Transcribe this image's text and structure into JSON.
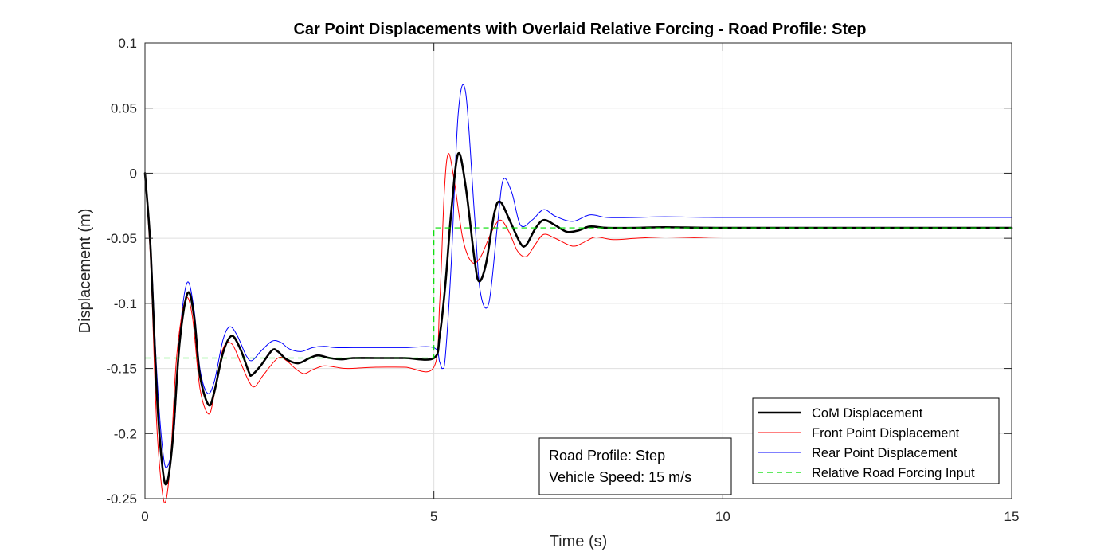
{
  "chart_data": {
    "type": "line",
    "title": "Car Point Displacements with Overlaid Relative Forcing - Road Profile: Step",
    "xlabel": "Time (s)",
    "ylabel": "Displacement (m)",
    "xlim": [
      0,
      15
    ],
    "ylim": [
      -0.25,
      0.1
    ],
    "xticks": [
      0,
      5,
      10,
      15
    ],
    "xtick_labels": [
      "0",
      "5",
      "10",
      "15"
    ],
    "yticks": [
      -0.25,
      -0.2,
      -0.15,
      -0.1,
      -0.05,
      0,
      0.05,
      0.1
    ],
    "ytick_labels": [
      "-0.25",
      "-0.2",
      "-0.15",
      "-0.1",
      "-0.05",
      "0",
      "0.05",
      "0.1"
    ],
    "grid": true,
    "legend_position": "bottom-right",
    "series": [
      {
        "name": "CoM Displacement",
        "color": "#000000",
        "style": "solid-thick",
        "x": [
          0,
          0.1,
          0.2,
          0.3,
          0.38,
          0.48,
          0.6,
          0.74,
          0.85,
          0.95,
          1.1,
          1.2,
          1.35,
          1.5,
          1.65,
          1.8,
          1.85,
          2.0,
          2.2,
          2.3,
          2.45,
          2.65,
          2.85,
          3.0,
          3.2,
          3.4,
          3.6,
          4.0,
          4.5,
          5.0,
          5.1,
          5.2,
          5.3,
          5.42,
          5.55,
          5.7,
          5.78,
          5.9,
          6.05,
          6.15,
          6.3,
          6.5,
          6.6,
          6.75,
          6.9,
          7.1,
          7.3,
          7.5,
          7.7,
          8.0,
          8.5,
          9.0,
          10.0,
          12.0,
          15.0
        ],
        "y": [
          0,
          -0.06,
          -0.165,
          -0.225,
          -0.238,
          -0.205,
          -0.13,
          -0.092,
          -0.11,
          -0.155,
          -0.178,
          -0.168,
          -0.138,
          -0.125,
          -0.135,
          -0.153,
          -0.155,
          -0.148,
          -0.136,
          -0.137,
          -0.143,
          -0.146,
          -0.142,
          -0.14,
          -0.142,
          -0.143,
          -0.142,
          -0.142,
          -0.142,
          -0.142,
          -0.125,
          -0.085,
          -0.03,
          0.015,
          -0.01,
          -0.065,
          -0.083,
          -0.07,
          -0.03,
          -0.022,
          -0.035,
          -0.054,
          -0.055,
          -0.043,
          -0.036,
          -0.04,
          -0.045,
          -0.044,
          -0.041,
          -0.042,
          -0.042,
          -0.0415,
          -0.042,
          -0.042,
          -0.042
        ]
      },
      {
        "name": "Front Point Displacement",
        "color": "#ff0000",
        "style": "solid-thin",
        "x": [
          0,
          0.1,
          0.2,
          0.3,
          0.37,
          0.45,
          0.55,
          0.7,
          0.82,
          0.95,
          1.1,
          1.2,
          1.35,
          1.5,
          1.65,
          1.8,
          1.9,
          2.05,
          2.3,
          2.45,
          2.6,
          2.75,
          2.9,
          3.1,
          3.3,
          3.5,
          4.0,
          4.5,
          5.0,
          5.1,
          5.18,
          5.25,
          5.35,
          5.5,
          5.65,
          5.8,
          6.0,
          6.15,
          6.3,
          6.45,
          6.6,
          6.75,
          6.9,
          7.1,
          7.4,
          7.6,
          7.8,
          8.1,
          8.5,
          9.0,
          9.5,
          10.0,
          12.0,
          15.0
        ],
        "y": [
          0,
          -0.07,
          -0.19,
          -0.245,
          -0.25,
          -0.215,
          -0.14,
          -0.097,
          -0.11,
          -0.165,
          -0.185,
          -0.17,
          -0.135,
          -0.131,
          -0.145,
          -0.16,
          -0.164,
          -0.155,
          -0.142,
          -0.144,
          -0.15,
          -0.154,
          -0.151,
          -0.148,
          -0.149,
          -0.15,
          -0.149,
          -0.149,
          -0.149,
          -0.1,
          -0.015,
          0.015,
          -0.005,
          -0.05,
          -0.068,
          -0.065,
          -0.045,
          -0.036,
          -0.045,
          -0.06,
          -0.064,
          -0.055,
          -0.047,
          -0.05,
          -0.056,
          -0.053,
          -0.049,
          -0.051,
          -0.05,
          -0.049,
          -0.0495,
          -0.049,
          -0.049,
          -0.049
        ]
      },
      {
        "name": "Rear Point Displacement",
        "color": "#0000ff",
        "style": "solid-thin",
        "x": [
          0,
          0.1,
          0.2,
          0.3,
          0.38,
          0.5,
          0.6,
          0.73,
          0.85,
          0.95,
          1.08,
          1.2,
          1.35,
          1.47,
          1.6,
          1.75,
          1.85,
          2.0,
          2.2,
          2.35,
          2.5,
          2.7,
          2.9,
          3.1,
          3.3,
          3.6,
          4.0,
          4.5,
          5.0,
          5.1,
          5.15,
          5.2,
          5.3,
          5.42,
          5.55,
          5.7,
          5.8,
          5.95,
          6.1,
          6.2,
          6.35,
          6.5,
          6.7,
          6.9,
          7.1,
          7.4,
          7.7,
          8.0,
          8.5,
          9.0,
          10.0,
          12.0,
          15.0
        ],
        "y": [
          0,
          -0.055,
          -0.15,
          -0.21,
          -0.226,
          -0.2,
          -0.125,
          -0.084,
          -0.105,
          -0.15,
          -0.169,
          -0.16,
          -0.128,
          -0.118,
          -0.125,
          -0.14,
          -0.144,
          -0.137,
          -0.129,
          -0.13,
          -0.135,
          -0.137,
          -0.134,
          -0.133,
          -0.134,
          -0.134,
          -0.134,
          -0.134,
          -0.134,
          -0.145,
          -0.15,
          -0.14,
          -0.07,
          0.045,
          0.062,
          -0.03,
          -0.09,
          -0.1,
          -0.04,
          -0.005,
          -0.015,
          -0.04,
          -0.036,
          -0.028,
          -0.033,
          -0.037,
          -0.032,
          -0.034,
          -0.034,
          -0.0335,
          -0.034,
          -0.034,
          -0.034
        ]
      },
      {
        "name": "Relative Road Forcing Input",
        "color": "#00dd00",
        "style": "dashed",
        "x": [
          0,
          5.0,
          5.0,
          15.0
        ],
        "y": [
          -0.142,
          -0.142,
          -0.042,
          -0.042
        ]
      }
    ]
  },
  "annotation": {
    "line1": "Road Profile: Step",
    "line2": "Vehicle Speed: 15 m/s"
  }
}
